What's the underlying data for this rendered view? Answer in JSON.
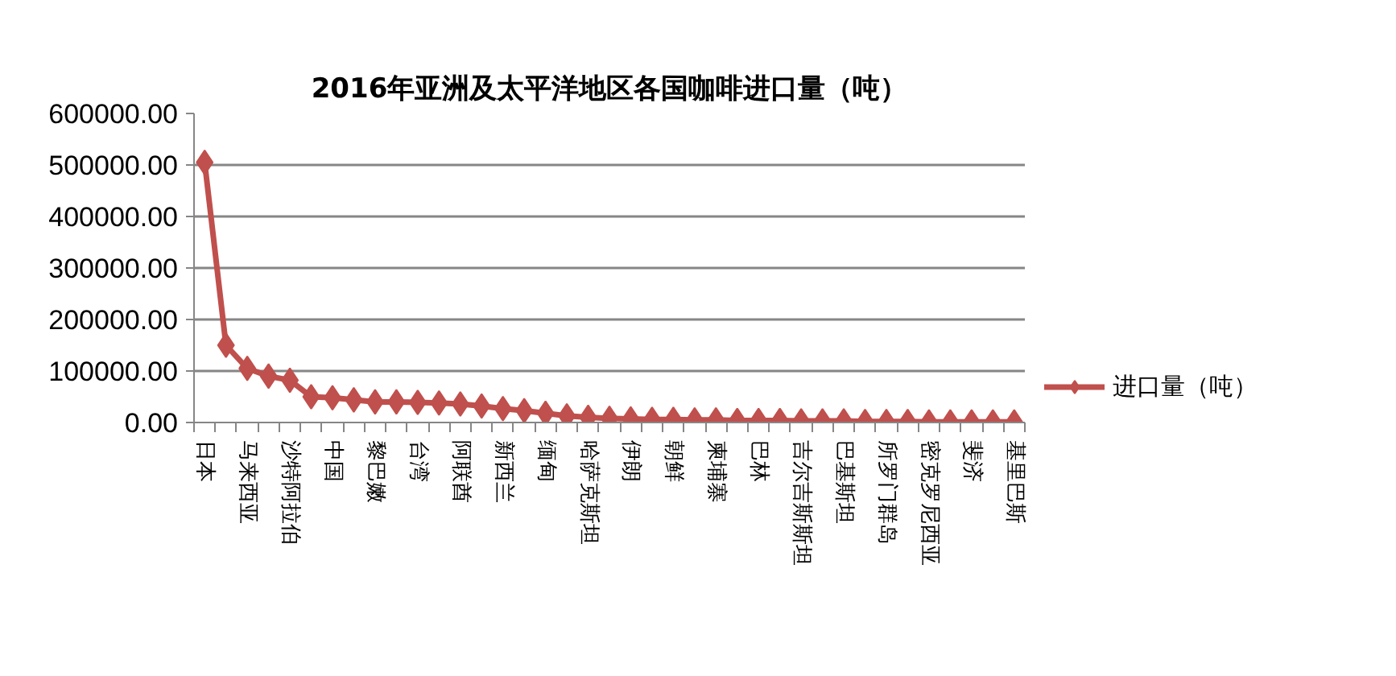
{
  "chart_data": {
    "type": "line",
    "title": "2016年亚洲及太平洋地区各国咖啡进口量（吨）",
    "categories": [
      "日本",
      null,
      "马来西亚",
      null,
      "沙特阿拉伯",
      null,
      "中国",
      null,
      "黎巴嫩",
      null,
      "台湾",
      null,
      "阿联酋",
      null,
      "新西兰",
      null,
      "缅甸",
      null,
      "哈萨克斯坦",
      null,
      "伊朗",
      null,
      "朝鲜",
      null,
      "柬埔寨",
      null,
      "巴林",
      null,
      "吉尔吉斯斯坦",
      null,
      "巴基斯坦",
      null,
      "所罗门群岛",
      null,
      "密克罗尼西亚",
      null,
      "斐济",
      null,
      "基里巴斯"
    ],
    "series": [
      {
        "name": "进口量（吨）",
        "color": "#c0504d",
        "values": [
          505000,
          150000,
          105000,
          90000,
          82000,
          50000,
          48000,
          44000,
          40000,
          40000,
          39000,
          38000,
          36000,
          32000,
          27000,
          23000,
          18000,
          13000,
          10000,
          8000,
          7000,
          6000,
          6000,
          5000,
          5000,
          4000,
          4000,
          4000,
          3000,
          3000,
          3000,
          2000,
          2000,
          2000,
          1000,
          1000,
          1000,
          1000,
          1000
        ]
      }
    ],
    "ylim": [
      0,
      600000
    ],
    "yticks": [
      {
        "value": 0,
        "label": "0.00"
      },
      {
        "value": 100000,
        "label": "100000.00"
      },
      {
        "value": 200000,
        "label": "200000.00"
      },
      {
        "value": 300000,
        "label": "300000.00"
      },
      {
        "value": 400000,
        "label": "400000.00"
      },
      {
        "value": 500000,
        "label": "500000.00"
      },
      {
        "value": 600000,
        "label": "600000.00"
      }
    ],
    "grid": "y",
    "legend": "right",
    "marker": "diamond",
    "line_style": "solid"
  }
}
